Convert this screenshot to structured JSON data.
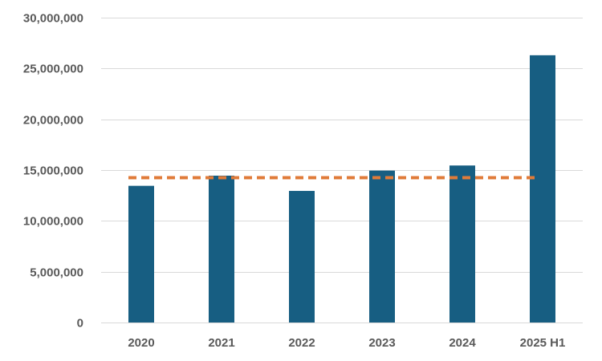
{
  "chart_data": {
    "type": "bar",
    "title": "",
    "xlabel": "",
    "ylabel": "",
    "categories": [
      "2020",
      "2021",
      "2022",
      "2023",
      "2024",
      "2025 H1"
    ],
    "series": [
      {
        "values": [
          13450000,
          14450000,
          12950000,
          14950000,
          15450000,
          26300000
        ],
        "color": "#175e82",
        "kind": "bar"
      },
      {
        "values": [
          14250000,
          14250000,
          14250000,
          14250000,
          14250000,
          14250000
        ],
        "color": "#e07b39",
        "kind": "dashed-line"
      }
    ],
    "ylim": [
      0,
      30000000
    ],
    "yticks": [
      0,
      5000000,
      10000000,
      15000000,
      20000000,
      25000000,
      30000000
    ],
    "ytick_labels": [
      "0",
      "5,000,000",
      "10,000,000",
      "15,000,000",
      "20,000,000",
      "25,000,000",
      "30,000,000"
    ],
    "grid": true,
    "legend": "none"
  }
}
